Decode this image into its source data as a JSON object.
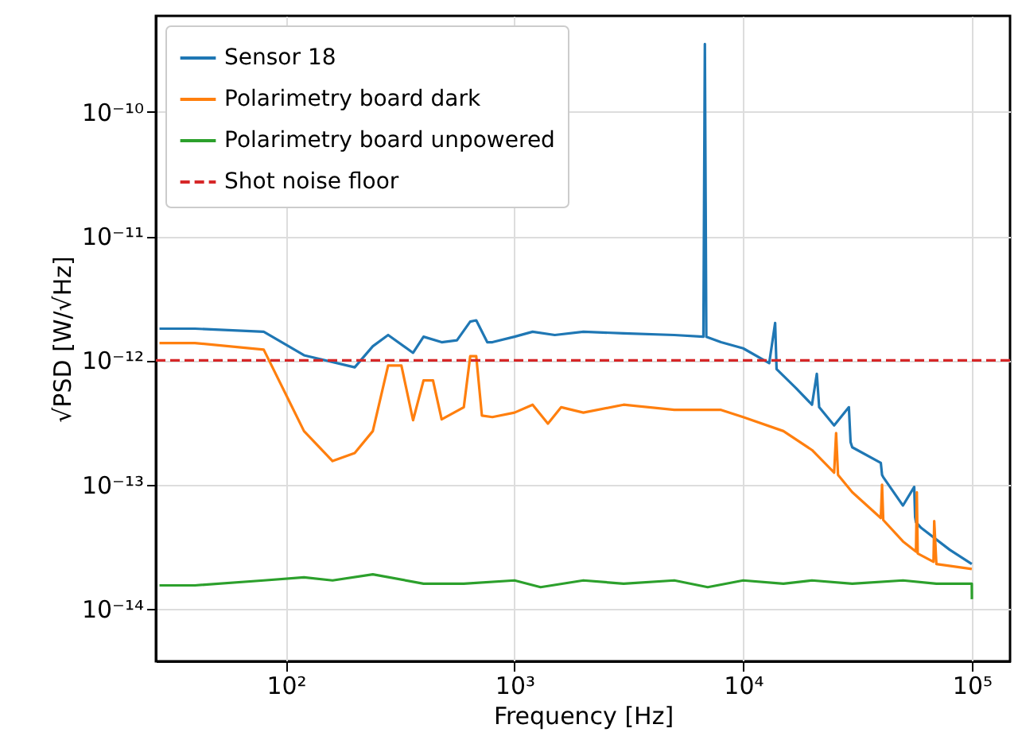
{
  "chart_data": {
    "type": "line",
    "xlabel": "Frequency [Hz]",
    "ylabel": "√PSD [W/√Hz]",
    "log": "xy",
    "grid": true,
    "legend": "top left",
    "line_style": "solid",
    "marker": "none",
    "xlim": [
      27,
      147000
    ],
    "ylim": [
      3.8e-15,
      5.9e-10
    ],
    "xticks": [
      {
        "value": 100,
        "label": "10²"
      },
      {
        "value": 1000,
        "label": "10³"
      },
      {
        "value": 10000,
        "label": "10⁴"
      },
      {
        "value": 100000,
        "label": "10⁵"
      }
    ],
    "yticks": [
      {
        "value": 1e-14,
        "label": "10⁻¹⁴"
      },
      {
        "value": 1e-13,
        "label": "10⁻¹³"
      },
      {
        "value": 1e-12,
        "label": "10⁻¹²"
      },
      {
        "value": 1e-11,
        "label": "10⁻¹¹"
      },
      {
        "value": 1e-10,
        "label": "10⁻¹⁰"
      }
    ],
    "series": [
      {
        "name": "Sensor 18",
        "color": "#1f77b4",
        "x": [
          28,
          40,
          80,
          120,
          200,
          240,
          280,
          360,
          400,
          480,
          560,
          640,
          680,
          760,
          800,
          1000,
          1200,
          1500,
          2000,
          3000,
          5000,
          6700,
          6800,
          6900,
          8000,
          10000,
          13000,
          13800,
          14000,
          17000,
          20000,
          21000,
          21500,
          25000,
          29000,
          29500,
          30000,
          40000,
          40500,
          41000,
          50000,
          56000,
          56500,
          57000,
          60000,
          80000,
          100000
        ],
        "values": [
          1.8e-12,
          1.8e-12,
          1.7e-12,
          1.1e-12,
          8.8e-13,
          1.3e-12,
          1.6e-12,
          1.15e-12,
          1.55e-12,
          1.4e-12,
          1.45e-12,
          2.05e-12,
          2.1e-12,
          1.4e-12,
          1.4e-12,
          1.55e-12,
          1.7e-12,
          1.6e-12,
          1.7e-12,
          1.65e-12,
          1.6e-12,
          1.55e-12,
          3.5e-10,
          1.55e-12,
          1.4e-12,
          1.25e-12,
          9.5e-13,
          2e-12,
          8.5e-13,
          6e-13,
          4.4e-13,
          7.8e-13,
          4.2e-13,
          3e-13,
          4.2e-13,
          2.2e-13,
          2e-13,
          1.5e-13,
          1.2e-13,
          1.15e-13,
          6.8e-14,
          9.6e-14,
          5.5e-14,
          5e-14,
          4.5e-14,
          3e-14,
          2.3e-14
        ]
      },
      {
        "name": "Polarimetry board dark",
        "color": "#ff7f0e",
        "x": [
          28,
          40,
          80,
          120,
          160,
          200,
          240,
          280,
          320,
          360,
          400,
          440,
          480,
          600,
          640,
          680,
          720,
          800,
          1000,
          1200,
          1400,
          1600,
          2000,
          3000,
          5000,
          8000,
          10000,
          15000,
          20000,
          25000,
          25500,
          26000,
          30000,
          40000,
          40500,
          41000,
          50000,
          57000,
          57500,
          58000,
          68000,
          68500,
          70000,
          100000
        ],
        "values": [
          1.38e-12,
          1.38e-12,
          1.22e-12,
          2.7e-13,
          1.55e-13,
          1.8e-13,
          2.7e-13,
          9.1e-13,
          9.1e-13,
          3.3e-13,
          6.9e-13,
          6.9e-13,
          3.35e-13,
          4.2e-13,
          1.08e-12,
          1.08e-12,
          3.6e-13,
          3.5e-13,
          3.8e-13,
          4.4e-13,
          3.1e-13,
          4.2e-13,
          3.8e-13,
          4.4e-13,
          4e-13,
          4e-13,
          3.5e-13,
          2.7e-13,
          1.9e-13,
          1.25e-13,
          2.6e-13,
          1.2e-13,
          8.7e-14,
          5.4e-14,
          1e-13,
          5.2e-14,
          3.5e-14,
          2.9e-14,
          8.7e-14,
          2.8e-14,
          2.4e-14,
          5.1e-14,
          2.3e-14,
          2.1e-14
        ]
      },
      {
        "name": "Polarimetry board unpowered",
        "color": "#2ca02c",
        "x": [
          28,
          40,
          80,
          120,
          160,
          240,
          400,
          600,
          1000,
          1300,
          2000,
          3000,
          5000,
          7000,
          10000,
          15000,
          20000,
          30000,
          50000,
          70000,
          100000,
          100100
        ],
        "values": [
          1.55e-14,
          1.55e-14,
          1.7e-14,
          1.8e-14,
          1.7e-14,
          1.9e-14,
          1.6e-14,
          1.6e-14,
          1.7e-14,
          1.5e-14,
          1.7e-14,
          1.6e-14,
          1.7e-14,
          1.5e-14,
          1.7e-14,
          1.6e-14,
          1.7e-14,
          1.6e-14,
          1.7e-14,
          1.6e-14,
          1.6e-14,
          1.2e-14
        ]
      }
    ],
    "ref_lines": [
      {
        "axis": "y",
        "value": 1e-12,
        "label": "Shot noise floor",
        "color": "#d62728",
        "line_style": "dashed"
      }
    ]
  }
}
